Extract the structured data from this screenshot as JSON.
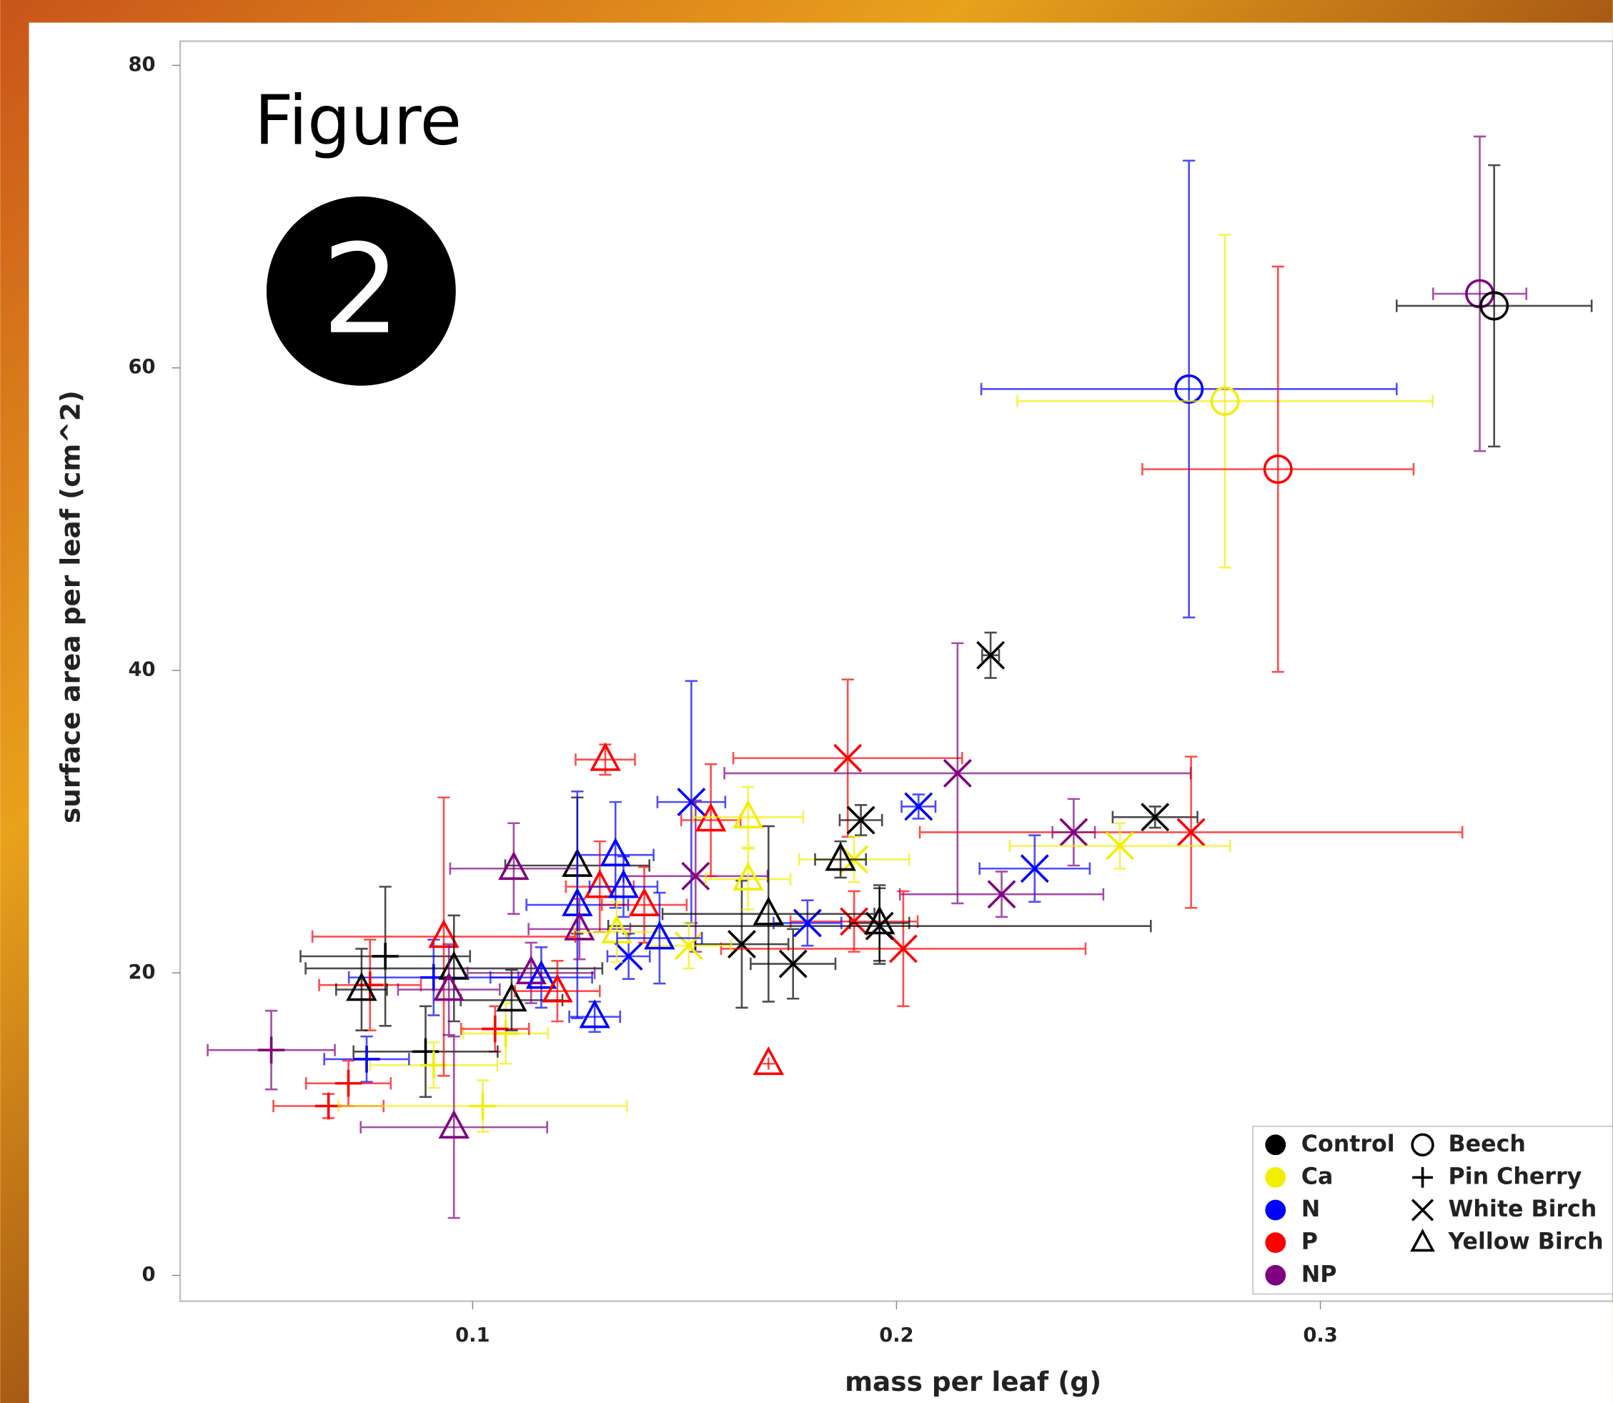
{
  "chart_data": {
    "type": "scatter",
    "annotations": [
      "Figure",
      "2"
    ],
    "x_label": "mass per leaf (g)",
    "y_label": "surface area per leaf (cm^2)",
    "xlim": [
      0.031,
      0.369
    ],
    "ylim": [
      -1.7,
      81.6
    ],
    "xticks": [
      0.1,
      0.2,
      0.3
    ],
    "yticks": [
      0,
      20,
      40,
      60,
      80
    ],
    "legend_position": "lower right",
    "treatments": [
      {
        "name": "Control",
        "color": "#000000"
      },
      {
        "name": "Ca",
        "color": "#f2ee00"
      },
      {
        "name": "N",
        "color": "#0000ff"
      },
      {
        "name": "P",
        "color": "#ff0000"
      },
      {
        "name": "NP",
        "color": "#800080"
      }
    ],
    "series": [
      {
        "name": "Beech",
        "marker": "circle",
        "x": [
          0.269,
          0.2775,
          0.29,
          0.3376,
          0.341
        ],
        "y": [
          58.6,
          57.8,
          53.3,
          64.9,
          64.1
        ],
        "xerr": [
          0.049,
          0.049,
          0.032,
          0.011,
          0.023
        ],
        "yerr": [
          15.1,
          11,
          13.4,
          10.4,
          9.3
        ],
        "colors": [
          "#0000ff",
          "#f2ee00",
          "#ff0000",
          "#800080",
          "#000000"
        ]
      },
      {
        "name": "Pin Cherry",
        "marker": "plus",
        "x": [
          0.0794,
          0.0908,
          0.0758,
          0.1078,
          0.1053,
          0.0889,
          0.0908,
          0.075,
          0.0525,
          0.0707,
          0.066,
          0.1024
        ],
        "y": [
          21.1,
          19.7,
          19.2,
          16.0,
          16.3,
          14.8,
          13.9,
          14.3,
          14.9,
          12.7,
          11.2,
          11.2
        ],
        "xerr": [
          0.02,
          0.02,
          0.012,
          0.01,
          0.008,
          0.017,
          0.015,
          0.01,
          0.015,
          0.01,
          0.013,
          0.034
        ],
        "yerr": [
          4.6,
          2.5,
          3,
          2,
          1.5,
          3,
          1.5,
          1.5,
          2.6,
          1.5,
          0.8,
          1.7
        ],
        "colors": [
          "#000000",
          "#0000ff",
          "#ff0000",
          "#f2ee00",
          "#ff0000",
          "#000000",
          "#f2ee00",
          "#0000ff",
          "#800080",
          "#ff0000",
          "#ff0000",
          "#f2ee00"
        ]
      },
      {
        "name": "White Birch",
        "marker": "x",
        "x": [
          0.2222,
          0.1885,
          0.2144,
          0.1516,
          0.1916,
          0.2052,
          0.261,
          0.2695,
          0.2418,
          0.2527,
          0.2326,
          0.2248,
          0.1526,
          0.19,
          0.1635,
          0.1756,
          0.19,
          0.2016,
          0.196,
          0.179,
          0.1368,
          0.151
        ],
        "y": [
          41.0,
          34.2,
          33.2,
          31.3,
          30.1,
          31.0,
          30.3,
          29.3,
          29.3,
          28.4,
          26.9,
          25.2,
          26.4,
          27.5,
          21.9,
          20.6,
          23.4,
          21.6,
          23.1,
          23.3,
          21.1,
          21.8
        ],
        "xerr": [
          0.002,
          0.027,
          0.055,
          0.008,
          0.005,
          0.004,
          0.01,
          0.064,
          0.005,
          0.026,
          0.013,
          0.024,
          0.017,
          0.013,
          0.011,
          0.01,
          0.015,
          0.043,
          0.064,
          0.008,
          0.005,
          0.01
        ],
        "yerr": [
          1.5,
          5.2,
          8.6,
          8,
          1,
          0.8,
          0.7,
          5,
          2.2,
          1.5,
          2.2,
          1.5,
          5,
          1.5,
          4.2,
          2.3,
          2,
          3.8,
          2.5,
          1.5,
          1.5,
          1.5
        ],
        "colors": [
          "#000000",
          "#ff0000",
          "#800080",
          "#0000ff",
          "#000000",
          "#0000ff",
          "#000000",
          "#ff0000",
          "#800080",
          "#f2ee00",
          "#0000ff",
          "#800080",
          "#800080",
          "#f2ee00",
          "#000000",
          "#000000",
          "#ff0000",
          "#ff0000",
          "#000000",
          "#0000ff",
          "#0000ff",
          "#f2ee00"
        ]
      },
      {
        "name": "Yellow Birch",
        "marker": "triangle",
        "x": [
          0.1313,
          0.1562,
          0.165,
          0.1868,
          0.1247,
          0.1097,
          0.1337,
          0.165,
          0.13,
          0.1698,
          0.1247,
          0.1405,
          0.1356,
          0.196,
          0.1252,
          0.134,
          0.1441,
          0.0932,
          0.0956,
          0.0738,
          0.1092,
          0.1138,
          0.1162,
          0.12,
          0.0944,
          0.1288,
          0.1698,
          0.0956
        ],
        "y": [
          34.1,
          30.1,
          30.3,
          27.5,
          27.1,
          26.9,
          27.8,
          26.2,
          25.7,
          23.9,
          24.5,
          24.5,
          25.7,
          23.3,
          22.9,
          22.7,
          22.3,
          22.4,
          20.3,
          18.9,
          18.2,
          20.0,
          19.7,
          18.8,
          18.9,
          17.1,
          14.0,
          9.8
        ],
        "xerr": [
          0.007,
          0.007,
          0.013,
          0.006,
          0.017,
          0.015,
          0.009,
          0.01,
          0.008,
          0.025,
          0.012,
          0.01,
          0.008,
          0.007,
          0.012,
          0.01,
          0.01,
          0.031,
          0.035,
          0.006,
          0.012,
          0.015,
          0.012,
          0.01,
          0.012,
          0.006,
          0,
          0.022
        ],
        "yerr": [
          1,
          3.7,
          2,
          1.2,
          4.5,
          3,
          3.5,
          2,
          3,
          5.8,
          7.5,
          2.5,
          2,
          2.5,
          2,
          2,
          3,
          9.2,
          3.5,
          2.7,
          2,
          2,
          2,
          2,
          3,
          1,
          0,
          6
        ],
        "colors": [
          "#ff0000",
          "#ff0000",
          "#f2ee00",
          "#000000",
          "#000000",
          "#800080",
          "#0000ff",
          "#f2ee00",
          "#ff0000",
          "#000000",
          "#0000ff",
          "#ff0000",
          "#0000ff",
          "#000000",
          "#800080",
          "#f2ee00",
          "#0000ff",
          "#ff0000",
          "#000000",
          "#000000",
          "#000000",
          "#800080",
          "#0000ff",
          "#ff0000",
          "#800080",
          "#0000ff",
          "#ff0000",
          "#800080"
        ]
      }
    ]
  }
}
